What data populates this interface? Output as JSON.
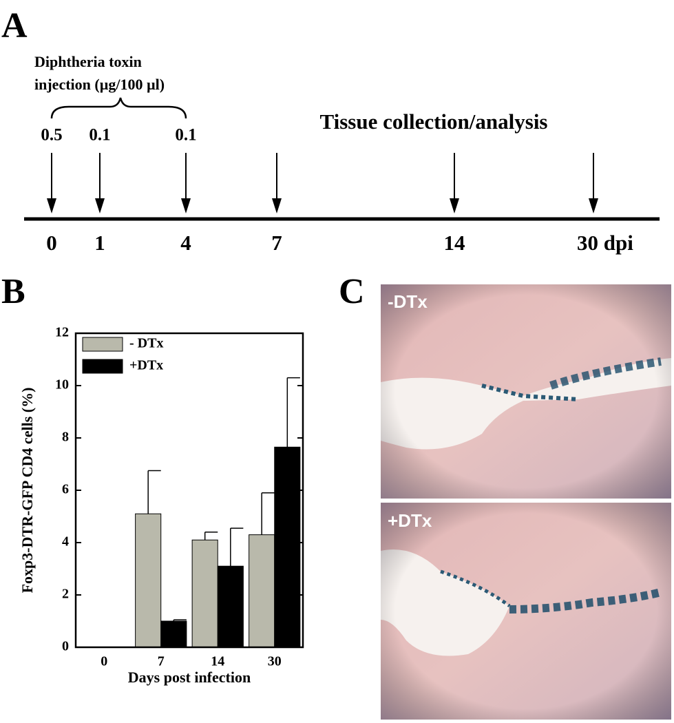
{
  "panel_labels": [
    "A",
    "B",
    "C"
  ],
  "timeline": {
    "injection_title": [
      "Diphtheria toxin",
      "injection (µg/100 µl)"
    ],
    "doses": [
      "0.5",
      "0.1",
      "0.1"
    ],
    "collection_title": "Tissue collection/analysis",
    "days": [
      "0",
      "1",
      "4",
      "7",
      "14",
      "30 dpi"
    ]
  },
  "chart_data": {
    "type": "bar",
    "y_label": "Foxp3-DTR-GFP CD4 cells (%)",
    "x_label": "Days post infection",
    "categories": [
      "0",
      "7",
      "14",
      "30"
    ],
    "series": [
      {
        "name": "- DTx",
        "color": "#b9b9ab",
        "values": [
          0,
          5.1,
          4.1,
          4.3
        ],
        "errors": [
          0,
          1.65,
          0.3,
          1.6
        ]
      },
      {
        "name": "+DTx",
        "color": "#000000",
        "values": [
          0,
          1.0,
          3.1,
          7.65
        ],
        "errors": [
          0,
          0.05,
          1.45,
          2.65
        ]
      }
    ],
    "ylim": [
      0,
      12
    ],
    "yticks": [
      0,
      2,
      4,
      6,
      8,
      10,
      12
    ],
    "legend": "upper left"
  },
  "micrographs": [
    {
      "label": "-DTx"
    },
    {
      "label": "+DTx"
    }
  ]
}
